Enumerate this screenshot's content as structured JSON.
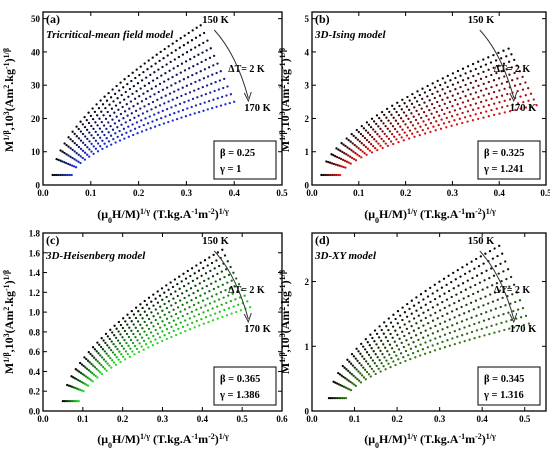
{
  "figure": {
    "x_axis_title": {
      "base": "(μ",
      "sub0": "0",
      "mid": "H/M)",
      "sup1": "1/γ",
      "units": " (T.kg.A",
      "supA": "-1",
      "m": "m",
      "supm": "-2",
      "close": ")",
      "sup2": "1/γ"
    },
    "y_axis_title_ab": {
      "M": "M",
      "sup1": "1/β",
      "mid": ",10",
      "sup3": "3",
      "units": "(Am",
      "sup2": "2",
      "kg": ".kg",
      "supkg": "-1",
      "close": ")",
      "sup4": "1/β"
    },
    "y_axis_title_cd": {
      "M": "M",
      "sup1": "1/β",
      "mid": ",10",
      "sup3": "3",
      "units": "(Am",
      "sup2": "2",
      "kg": ".kg",
      "supkg": "-1",
      "close": ")",
      "sup4": "1/β"
    }
  },
  "chart_data": [
    {
      "type": "scatter",
      "panel_label": "(a)",
      "model": "Tricritical-mean field model",
      "beta_text": "β = 0.25",
      "gamma_text": "γ = 1",
      "t_high": "150 K",
      "t_low": "170 K",
      "delta_t": "ΔT= 2 K",
      "xlim": [
        0,
        0.5
      ],
      "ylim": [
        0,
        52
      ],
      "xticks": [
        "0.0",
        "0.1",
        "0.2",
        "0.3",
        "0.4",
        "0.5"
      ],
      "yticks": [
        "0",
        "10",
        "20",
        "30",
        "40",
        "50"
      ],
      "color_start": "#000000",
      "color_end": "#1a2dd6",
      "series_count": 11,
      "x_start_first": 0.02,
      "x_end_first": 0.33,
      "y_end_first": 48,
      "x_start_last": 0.06,
      "x_end_last": 0.4,
      "y_end_last": 25,
      "y_start": 3
    },
    {
      "type": "scatter",
      "panel_label": "(b)",
      "model": "3D-Ising model",
      "beta_text": "β = 0.325",
      "gamma_text": "γ = 1.241",
      "t_high": "150 K",
      "t_low": "170 K",
      "delta_t": "ΔT= 2 K",
      "xlim": [
        0,
        0.5
      ],
      "ylim": [
        0,
        5.2
      ],
      "xticks": [
        "0.0",
        "0.1",
        "0.2",
        "0.3",
        "0.4",
        "0.5"
      ],
      "yticks": [
        "0",
        "1",
        "2",
        "3",
        "4",
        "5"
      ],
      "color_start": "#000000",
      "color_end": "#e01010",
      "series_count": 11,
      "x_start_first": 0.02,
      "x_end_first": 0.42,
      "y_end_first": 4.1,
      "x_start_last": 0.06,
      "x_end_last": 0.48,
      "y_end_last": 2.4,
      "y_start": 0.3
    },
    {
      "type": "scatter",
      "panel_label": "(c)",
      "model": "3D-Heisenberg model",
      "beta_text": "β = 0.365",
      "gamma_text": "γ = 1.386",
      "t_high": "150 K",
      "t_low": "170 K",
      "delta_t": "ΔT= 2 K",
      "xlim": [
        0,
        0.6
      ],
      "ylim": [
        0,
        1.8
      ],
      "xticks": [
        "0.0",
        "0.1",
        "0.2",
        "0.3",
        "0.4",
        "0.5",
        "0.6"
      ],
      "yticks": [
        "0.0",
        "0.2",
        "0.4",
        "0.6",
        "0.8",
        "1.0",
        "1.2",
        "1.4",
        "1.6",
        "1.8"
      ],
      "color_start": "#000000",
      "color_end": "#22dd22",
      "series_count": 11,
      "x_start_first": 0.05,
      "x_end_first": 0.45,
      "y_end_first": 1.63,
      "x_start_last": 0.09,
      "x_end_last": 0.52,
      "y_end_last": 1.05,
      "y_start": 0.1
    },
    {
      "type": "scatter",
      "panel_label": "(d)",
      "model": "3D-XY model",
      "beta_text": "β = 0.345",
      "gamma_text": "γ = 1.316",
      "t_high": "150 K",
      "t_low": "170 K",
      "delta_t": "ΔT= 2 K",
      "xlim": [
        0,
        0.55
      ],
      "ylim": [
        0,
        2.75
      ],
      "xticks": [
        "0.0",
        "0.1",
        "0.2",
        "0.3",
        "0.4",
        "0.5"
      ],
      "yticks": [
        "0",
        "1",
        "2"
      ],
      "color_start": "#000000",
      "color_end": "#2f7a12",
      "series_count": 11,
      "x_start_first": 0.04,
      "x_end_first": 0.44,
      "y_end_first": 2.55,
      "x_start_last": 0.08,
      "x_end_last": 0.51,
      "y_end_last": 1.35,
      "y_start": 0.2
    }
  ]
}
